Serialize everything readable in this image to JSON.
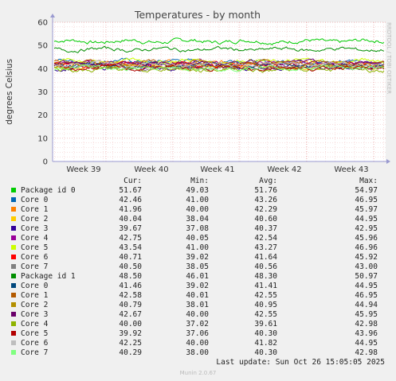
{
  "chart_data": {
    "type": "line",
    "title": "Temperatures - by month",
    "ylabel": "degrees Celsius",
    "side_label": "RRDTOOL / TOBI OETIKER",
    "ylim": [
      0,
      60
    ],
    "yticks": [
      0,
      10,
      20,
      30,
      40,
      50,
      60
    ],
    "x_ticks": [
      "Week 39",
      "Week 40",
      "Week 41",
      "Week 42",
      "Week 43"
    ],
    "grid": true,
    "columns": [
      "Cur:",
      "Min:",
      "Avg:",
      "Max:"
    ],
    "series": [
      {
        "name": "Package id 0",
        "color": "#00cc00",
        "cur": "51.67",
        "min": "49.03",
        "avg": "51.76",
        "max": "54.97",
        "level": 51.8,
        "amp": 1.4
      },
      {
        "name": "Core 0",
        "color": "#0066b3",
        "cur": "42.46",
        "min": "41.00",
        "avg": "43.26",
        "max": "46.95",
        "level": 43.2,
        "amp": 1.4
      },
      {
        "name": "Core 1",
        "color": "#ff8000",
        "cur": "41.96",
        "min": "40.00",
        "avg": "42.29",
        "max": "45.97",
        "level": 42.3,
        "amp": 1.4
      },
      {
        "name": "Core 2",
        "color": "#ffcc00",
        "cur": "40.04",
        "min": "38.04",
        "avg": "40.60",
        "max": "44.95",
        "level": 40.6,
        "amp": 1.4
      },
      {
        "name": "Core 3",
        "color": "#330099",
        "cur": "39.67",
        "min": "37.08",
        "avg": "40.37",
        "max": "42.95",
        "level": 40.4,
        "amp": 1.4
      },
      {
        "name": "Core 4",
        "color": "#990099",
        "cur": "42.75",
        "min": "40.05",
        "avg": "42.54",
        "max": "45.96",
        "level": 42.5,
        "amp": 1.4
      },
      {
        "name": "Core 5",
        "color": "#ccff00",
        "cur": "43.54",
        "min": "41.00",
        "avg": "43.27",
        "max": "46.96",
        "level": 43.3,
        "amp": 1.4
      },
      {
        "name": "Core 6",
        "color": "#ff0000",
        "cur": "40.71",
        "min": "39.02",
        "avg": "41.64",
        "max": "45.92",
        "level": 41.6,
        "amp": 1.4
      },
      {
        "name": "Core 7",
        "color": "#808080",
        "cur": "40.50",
        "min": "38.05",
        "avg": "40.56",
        "max": "43.00",
        "level": 40.6,
        "amp": 1.4
      },
      {
        "name": "Package id 1",
        "color": "#008f00",
        "cur": "48.50",
        "min": "46.01",
        "avg": "48.30",
        "max": "50.97",
        "level": 48.3,
        "amp": 1.2
      },
      {
        "name": "Core 0",
        "color": "#00487d",
        "cur": "41.46",
        "min": "39.02",
        "avg": "41.41",
        "max": "44.95",
        "level": 41.4,
        "amp": 1.4
      },
      {
        "name": "Core 1",
        "color": "#b35a00",
        "cur": "42.58",
        "min": "40.01",
        "avg": "42.55",
        "max": "46.95",
        "level": 42.5,
        "amp": 1.4
      },
      {
        "name": "Core 2",
        "color": "#b38f00",
        "cur": "40.79",
        "min": "38.01",
        "avg": "40.95",
        "max": "44.94",
        "level": 40.9,
        "amp": 1.4
      },
      {
        "name": "Core 3",
        "color": "#6b006b",
        "cur": "42.67",
        "min": "40.00",
        "avg": "42.55",
        "max": "45.95",
        "level": 42.5,
        "amp": 1.4
      },
      {
        "name": "Core 4",
        "color": "#8fb300",
        "cur": "40.00",
        "min": "37.02",
        "avg": "39.61",
        "max": "42.98",
        "level": 39.6,
        "amp": 1.4
      },
      {
        "name": "Core 5",
        "color": "#b30000",
        "cur": "39.92",
        "min": "37.06",
        "avg": "40.30",
        "max": "43.96",
        "level": 40.3,
        "amp": 1.4
      },
      {
        "name": "Core 6",
        "color": "#bebebe",
        "cur": "42.25",
        "min": "40.00",
        "avg": "41.82",
        "max": "44.95",
        "level": 41.8,
        "amp": 1.4
      },
      {
        "name": "Core 7",
        "color": "#80ff80",
        "cur": "40.29",
        "min": "38.00",
        "avg": "40.30",
        "max": "42.98",
        "level": 40.3,
        "amp": 1.4
      }
    ]
  },
  "last_update": "Last update: Sun Oct 26 15:05:05 2025",
  "footer": "Munin 2.0.67"
}
